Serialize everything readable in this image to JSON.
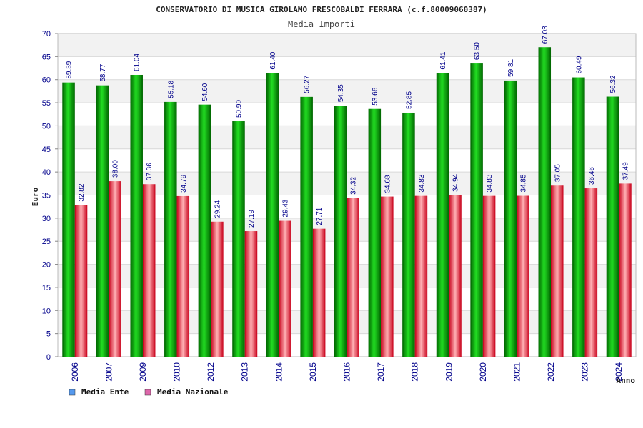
{
  "chart_data": {
    "type": "bar",
    "title": "CONSERVATORIO DI MUSICA GIROLAMO FRESCOBALDI FERRARA (c.f.80009060387)",
    "subtitle": "Media Importi",
    "xlabel": "Anno",
    "ylabel": "Euro",
    "ylim": [
      0,
      70
    ],
    "ytick_step": 5,
    "grid": true,
    "legend_position": "bottom-left",
    "categories": [
      "2006",
      "2007",
      "2009",
      "2010",
      "2012",
      "2013",
      "2014",
      "2015",
      "2016",
      "2017",
      "2018",
      "2019",
      "2020",
      "2021",
      "2022",
      "2023",
      "2024"
    ],
    "series": [
      {
        "name": "Media Ente",
        "color": "#00b000",
        "legend_color": "#5599ee",
        "values": [
          59.39,
          58.77,
          61.04,
          55.18,
          54.6,
          50.99,
          61.4,
          56.27,
          54.35,
          53.66,
          52.85,
          61.41,
          63.5,
          59.81,
          67.03,
          60.49,
          56.32
        ],
        "labels": [
          "59.39",
          "58.77",
          "61.04",
          "55.18",
          "54.60",
          "50.99",
          "61.40",
          "56.27",
          "54.35",
          "53.66",
          "52.85",
          "61.41",
          "63.50",
          "59.81",
          "67.03",
          "60.49",
          "56.32"
        ]
      },
      {
        "name": "Media Nazionale",
        "color": "#e8202a",
        "legend_color": "#dd66aa",
        "values": [
          32.82,
          38.0,
          37.36,
          34.79,
          29.24,
          27.19,
          29.43,
          27.71,
          34.32,
          34.68,
          34.83,
          34.94,
          34.83,
          34.85,
          37.05,
          36.46,
          37.49
        ],
        "labels": [
          "32.82",
          "38.00",
          "37.36",
          "34.79",
          "29.24",
          "27.19",
          "29.43",
          "27.71",
          "34.32",
          "34.68",
          "34.83",
          "34.94",
          "34.83",
          "34.85",
          "37.05",
          "36.46",
          "37.49"
        ]
      }
    ]
  }
}
